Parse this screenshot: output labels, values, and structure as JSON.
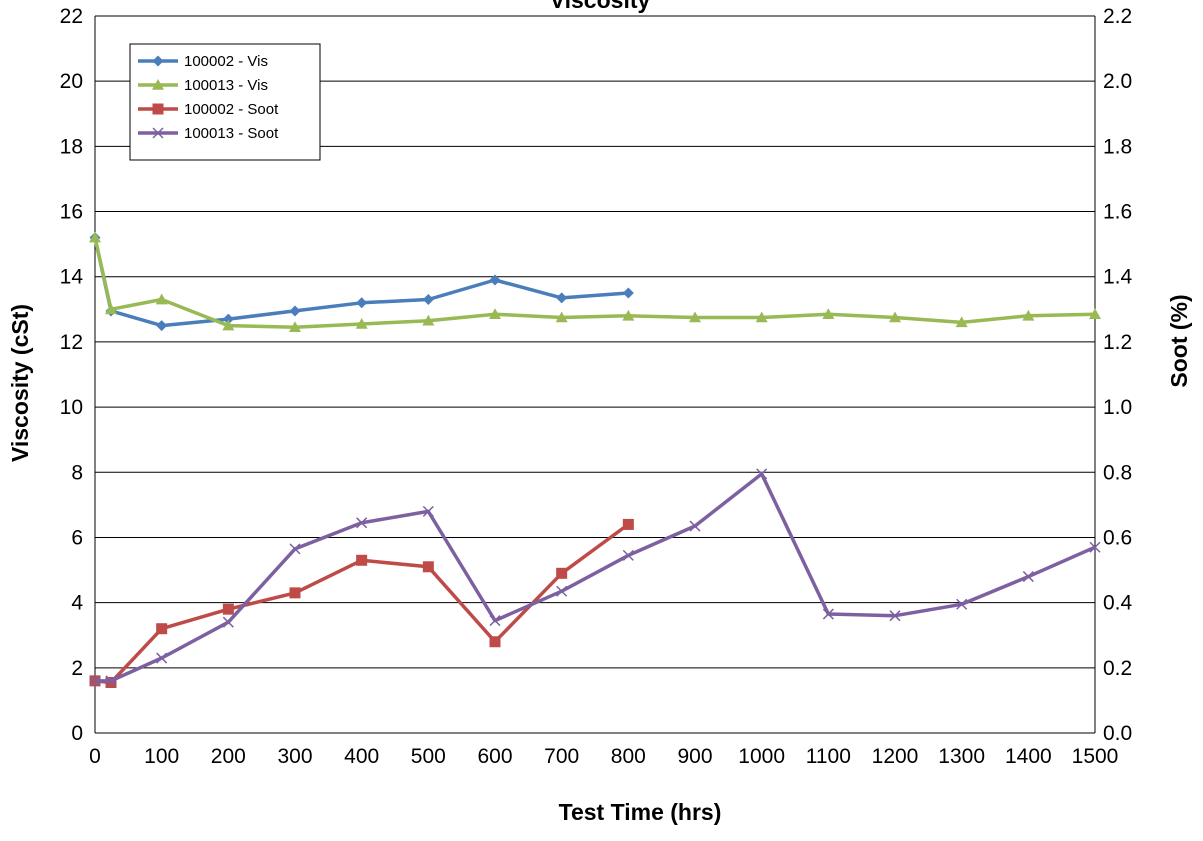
{
  "chart_data": {
    "type": "line",
    "title": "Viscosity",
    "xlabel": "Test Time (hrs)",
    "ylabel": "Viscosity (cSt)",
    "y2label": "Soot (%)",
    "xlim": [
      0,
      1500
    ],
    "ylim": [
      0,
      22
    ],
    "y2lim": [
      0.0,
      2.2
    ],
    "xticks": [
      "0",
      "100",
      "200",
      "300",
      "400",
      "500",
      "600",
      "700",
      "800",
      "900",
      "1000",
      "1100",
      "1200",
      "1300",
      "1400",
      "1500"
    ],
    "yticks": [
      "0",
      "2",
      "4",
      "6",
      "8",
      "10",
      "12",
      "14",
      "16",
      "18",
      "20",
      "22"
    ],
    "y2ticks": [
      "0.0",
      "0.2",
      "0.4",
      "0.6",
      "0.8",
      "1.0",
      "1.2",
      "1.4",
      "1.6",
      "1.8",
      "2.0",
      "2.2"
    ],
    "grid": "horizontal",
    "legend_position": "top-left",
    "series": [
      {
        "name": "100002 - Vis",
        "axis": "left",
        "color": "#4a7ebb",
        "marker": "diamond",
        "x": [
          0,
          24,
          100,
          200,
          300,
          400,
          500,
          600,
          700,
          800
        ],
        "y": [
          15.2,
          12.95,
          12.5,
          12.7,
          12.95,
          13.2,
          13.3,
          13.9,
          13.35,
          13.5
        ]
      },
      {
        "name": "100013 - Vis",
        "axis": "left",
        "color": "#98b954",
        "marker": "triangle",
        "x": [
          0,
          24,
          100,
          200,
          300,
          400,
          500,
          600,
          700,
          800,
          900,
          1000,
          1100,
          1200,
          1300,
          1400,
          1500
        ],
        "y": [
          15.2,
          13.0,
          13.3,
          12.5,
          12.45,
          12.55,
          12.65,
          12.85,
          12.75,
          12.8,
          12.75,
          12.75,
          12.85,
          12.75,
          12.6,
          12.8,
          12.85
        ]
      },
      {
        "name": "100002 - Soot",
        "axis": "right",
        "color": "#be4b48",
        "marker": "square",
        "x": [
          0,
          24,
          100,
          200,
          300,
          400,
          500,
          600,
          700,
          800
        ],
        "y": [
          0.16,
          0.155,
          0.32,
          0.38,
          0.43,
          0.53,
          0.51,
          0.28,
          0.49,
          0.64
        ]
      },
      {
        "name": "100013 - Soot",
        "axis": "right",
        "color": "#7d60a0",
        "marker": "x",
        "x": [
          0,
          24,
          100,
          200,
          300,
          400,
          500,
          600,
          700,
          800,
          900,
          1000,
          1100,
          1200,
          1300,
          1400,
          1500
        ],
        "y": [
          0.16,
          0.16,
          0.23,
          0.34,
          0.565,
          0.645,
          0.68,
          0.345,
          0.435,
          0.545,
          0.635,
          0.795,
          0.365,
          0.36,
          0.395,
          0.48,
          0.57
        ]
      }
    ]
  }
}
